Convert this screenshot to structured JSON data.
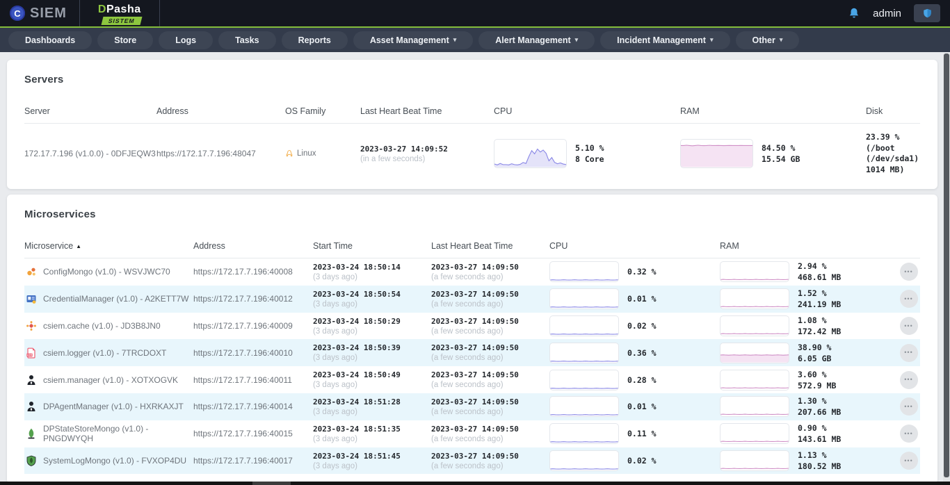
{
  "app": {
    "logo_c": "C",
    "logo_siem": "SIEM",
    "brand": "DPasha",
    "brand_badge": "SISTEM",
    "user": "admin"
  },
  "colors": {
    "accent_green": "#84bd3a",
    "cpu_line": "#8a88e6",
    "ram_line": "#cf8fc6",
    "ram_fill": "#f5e3f3",
    "icon_blue": "#49a5e6",
    "alt_row": "#e8f6fc"
  },
  "nav": {
    "items": [
      {
        "label": "Dashboards",
        "dropdown": false
      },
      {
        "label": "Store",
        "dropdown": false
      },
      {
        "label": "Logs",
        "dropdown": false
      },
      {
        "label": "Tasks",
        "dropdown": false
      },
      {
        "label": "Reports",
        "dropdown": false
      },
      {
        "label": "Asset Management",
        "dropdown": true
      },
      {
        "label": "Alert Management",
        "dropdown": true
      },
      {
        "label": "Incident Management",
        "dropdown": true
      },
      {
        "label": "Other",
        "dropdown": true
      }
    ]
  },
  "servers": {
    "title": "Servers",
    "columns": {
      "server": "Server",
      "address": "Address",
      "os": "OS Family",
      "heartbeat": "Last Heart Beat Time",
      "cpu": "CPU",
      "ram": "RAM",
      "disk": "Disk"
    },
    "row": {
      "server": "172.17.7.196 (v1.0.0) - 0DFJEQW3",
      "address": "https://172.17.7.196:48047",
      "os": "Linux",
      "heartbeat_time": "2023-03-27 14:09:52",
      "heartbeat_rel": "(in a few seconds)",
      "cpu_text": "5.10 %\n8 Core",
      "ram_text": "84.50 %\n15.54 GB",
      "disk": "23.39 %\n(/boot\n(/dev/sda1)\n1014 MB)",
      "cpu_spark": {
        "color": "#8a88e6",
        "fill": "#e4e3f9",
        "values": [
          10,
          7,
          12,
          8,
          8,
          7,
          11,
          8,
          7,
          9,
          16,
          12,
          38,
          60,
          48,
          66,
          55,
          62,
          50,
          22,
          34,
          16,
          11,
          14,
          10,
          8
        ]
      },
      "ram_spark": {
        "color": "#cf8fc6",
        "fill": "#f5e3f3",
        "values": [
          79,
          79,
          80,
          79,
          78,
          79,
          80,
          79,
          78.5,
          79,
          79.5,
          79,
          78.8,
          79.2,
          79,
          78.6,
          79,
          79.3,
          79,
          78.8,
          79,
          79.2,
          78.9,
          79,
          79.1,
          79
        ]
      }
    }
  },
  "microservices": {
    "title": "Microservices",
    "sort_indicator": "▲",
    "columns": {
      "microservice": "Microservice",
      "address": "Address",
      "start": "Start Time",
      "heartbeat": "Last Heart Beat Time",
      "cpu": "CPU",
      "ram": "RAM"
    },
    "rows": [
      {
        "icon": "config-mongo-icon",
        "name": "ConfigMongo (v1.0) - WSVJWC70",
        "address": "https://172.17.7.196:40008",
        "start_time": "2023-03-24 18:50:14",
        "start_rel": "(3 days ago)",
        "hb_time": "2023-03-27 14:09:50",
        "hb_rel": "(a few seconds ago)",
        "cpu_pct": "0.32 %",
        "ram_text": "2.94 %\n468.61 MB",
        "cpu_level": 5,
        "ram_level": 7,
        "ram_fill": false
      },
      {
        "icon": "credential-manager-icon",
        "name": "CredentialManager (v1.0) - A2KETT7W",
        "address": "https://172.17.7.196:40012",
        "start_time": "2023-03-24 18:50:54",
        "start_rel": "(3 days ago)",
        "hb_time": "2023-03-27 14:09:50",
        "hb_rel": "(a few seconds ago)",
        "cpu_pct": "0.01 %",
        "ram_text": "1.52 %\n241.19 MB",
        "cpu_level": 5,
        "ram_level": 7,
        "ram_fill": false
      },
      {
        "icon": "cache-icon",
        "name": "csiem.cache (v1.0) - JD3B8JN0",
        "address": "https://172.17.7.196:40009",
        "start_time": "2023-03-24 18:50:29",
        "start_rel": "(3 days ago)",
        "hb_time": "2023-03-27 14:09:50",
        "hb_rel": "(a few seconds ago)",
        "cpu_pct": "0.02 %",
        "ram_text": "1.08 %\n172.42 MB",
        "cpu_level": 5,
        "ram_level": 7,
        "ram_fill": false
      },
      {
        "icon": "log-file-icon",
        "name": "csiem.logger (v1.0) - 7TRCDOXT",
        "address": "https://172.17.7.196:40010",
        "start_time": "2023-03-24 18:50:39",
        "start_rel": "(3 days ago)",
        "hb_time": "2023-03-27 14:09:50",
        "hb_rel": "(a few seconds ago)",
        "cpu_pct": "0.36 %",
        "ram_text": "38.90 %\n6.05 GB",
        "cpu_level": 5,
        "ram_level": 38,
        "ram_fill": true
      },
      {
        "icon": "manager-person-icon",
        "name": "csiem.manager (v1.0) - XOTXOGVK",
        "address": "https://172.17.7.196:40011",
        "start_time": "2023-03-24 18:50:49",
        "start_rel": "(3 days ago)",
        "hb_time": "2023-03-27 14:09:50",
        "hb_rel": "(a few seconds ago)",
        "cpu_pct": "0.28 %",
        "ram_text": "3.60 %\n572.9 MB",
        "cpu_level": 5,
        "ram_level": 7,
        "ram_fill": false
      },
      {
        "icon": "manager-person-icon",
        "name": "DPAgentManager (v1.0) - HXRKAXJT",
        "address": "https://172.17.7.196:40014",
        "start_time": "2023-03-24 18:51:28",
        "start_rel": "(3 days ago)",
        "hb_time": "2023-03-27 14:09:50",
        "hb_rel": "(a few seconds ago)",
        "cpu_pct": "0.01 %",
        "ram_text": "1.30 %\n207.66 MB",
        "cpu_level": 5,
        "ram_level": 7,
        "ram_fill": false
      },
      {
        "icon": "mongo-leaf-icon",
        "name": "DPStateStoreMongo (v1.0) - PNGDWYQH",
        "address": "https://172.17.7.196:40015",
        "start_time": "2023-03-24 18:51:35",
        "start_rel": "(3 days ago)",
        "hb_time": "2023-03-27 14:09:50",
        "hb_rel": "(a few seconds ago)",
        "cpu_pct": "0.11 %",
        "ram_text": "0.90 %\n143.61 MB",
        "cpu_level": 5,
        "ram_level": 7,
        "ram_fill": false
      },
      {
        "icon": "mongo-shield-icon",
        "name": "SystemLogMongo (v1.0) - FVXOP4DU",
        "address": "https://172.17.7.196:40017",
        "start_time": "2023-03-24 18:51:45",
        "start_rel": "(3 days ago)",
        "hb_time": "2023-03-27 14:09:50",
        "hb_rel": "(a few seconds ago)",
        "cpu_pct": "0.02 %",
        "ram_text": "1.13 %\n180.52 MB",
        "cpu_level": 5,
        "ram_level": 7,
        "ram_fill": false
      }
    ]
  },
  "misc": {
    "ellipsis_icon": "•••"
  }
}
